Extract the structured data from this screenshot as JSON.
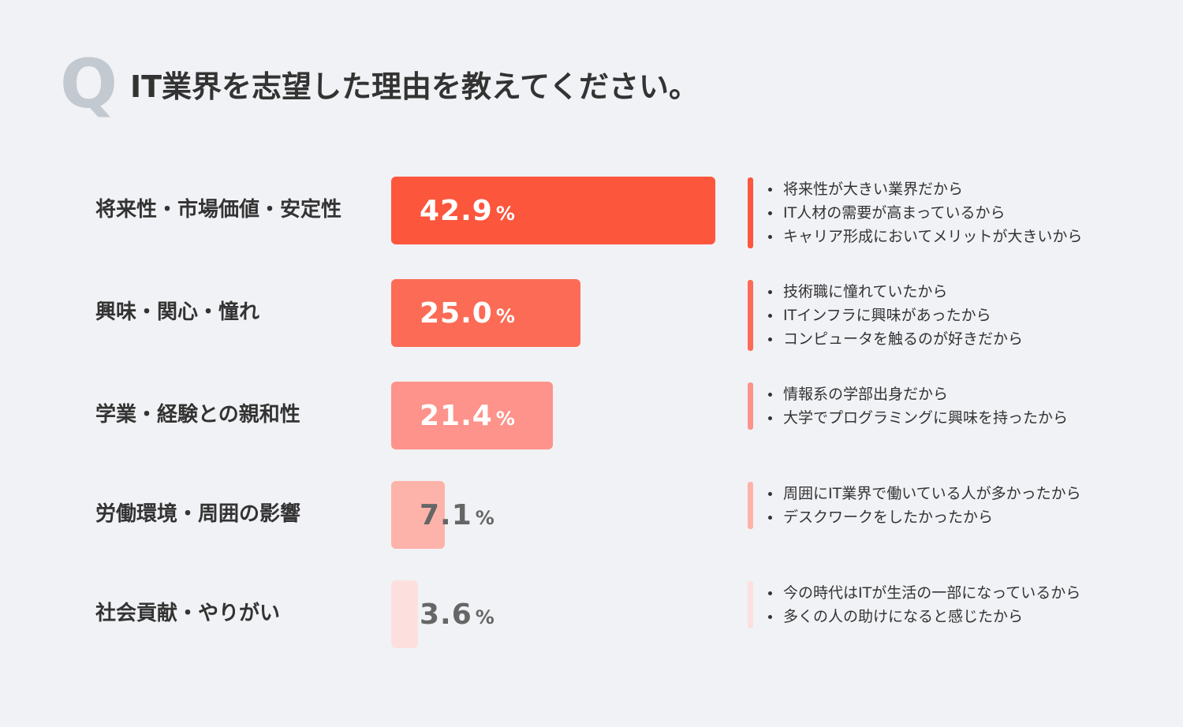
{
  "header": {
    "q_mark": "Q",
    "question": "IT業界を志望した理由を教えてください。"
  },
  "chart_data": {
    "type": "bar",
    "orientation": "horizontal",
    "unit": "%",
    "categories": [
      "将来性・市場価値・安定性",
      "興味・関心・憧れ",
      "学業・経験との親和性",
      "労働環境・周囲の影響",
      "社会貢献・やりがい"
    ],
    "values": [
      42.9,
      25.0,
      21.4,
      7.1,
      3.6
    ],
    "value_labels": [
      "42.9",
      "25.0",
      "21.4",
      "7.1",
      "3.6"
    ],
    "colors": [
      "#fc563d",
      "#fc6b55",
      "#fd938a",
      "#fdb3aa",
      "#fde0de"
    ],
    "value_text_colors": [
      "#ffffff",
      "#ffffff",
      "#ffffff",
      "#666666",
      "#666666"
    ],
    "reasons": [
      [
        "将来性が大きい業界だから",
        "IT人材の需要が高まっているから",
        "キャリア形成においてメリットが大きいから"
      ],
      [
        "技術職に憧れていたから",
        "ITインフラに興味があったから",
        "コンピュータを触るのが好きだから"
      ],
      [
        "情報系の学部出身だから",
        "大学でプログラミングに興味を持ったから"
      ],
      [
        "周囲にIT業界で働いている人が多かったから",
        "デスクワークをしたかったから"
      ],
      [
        "今の時代はITが生活の一部になっているから",
        "多くの人の助けになると感じたから"
      ]
    ]
  }
}
